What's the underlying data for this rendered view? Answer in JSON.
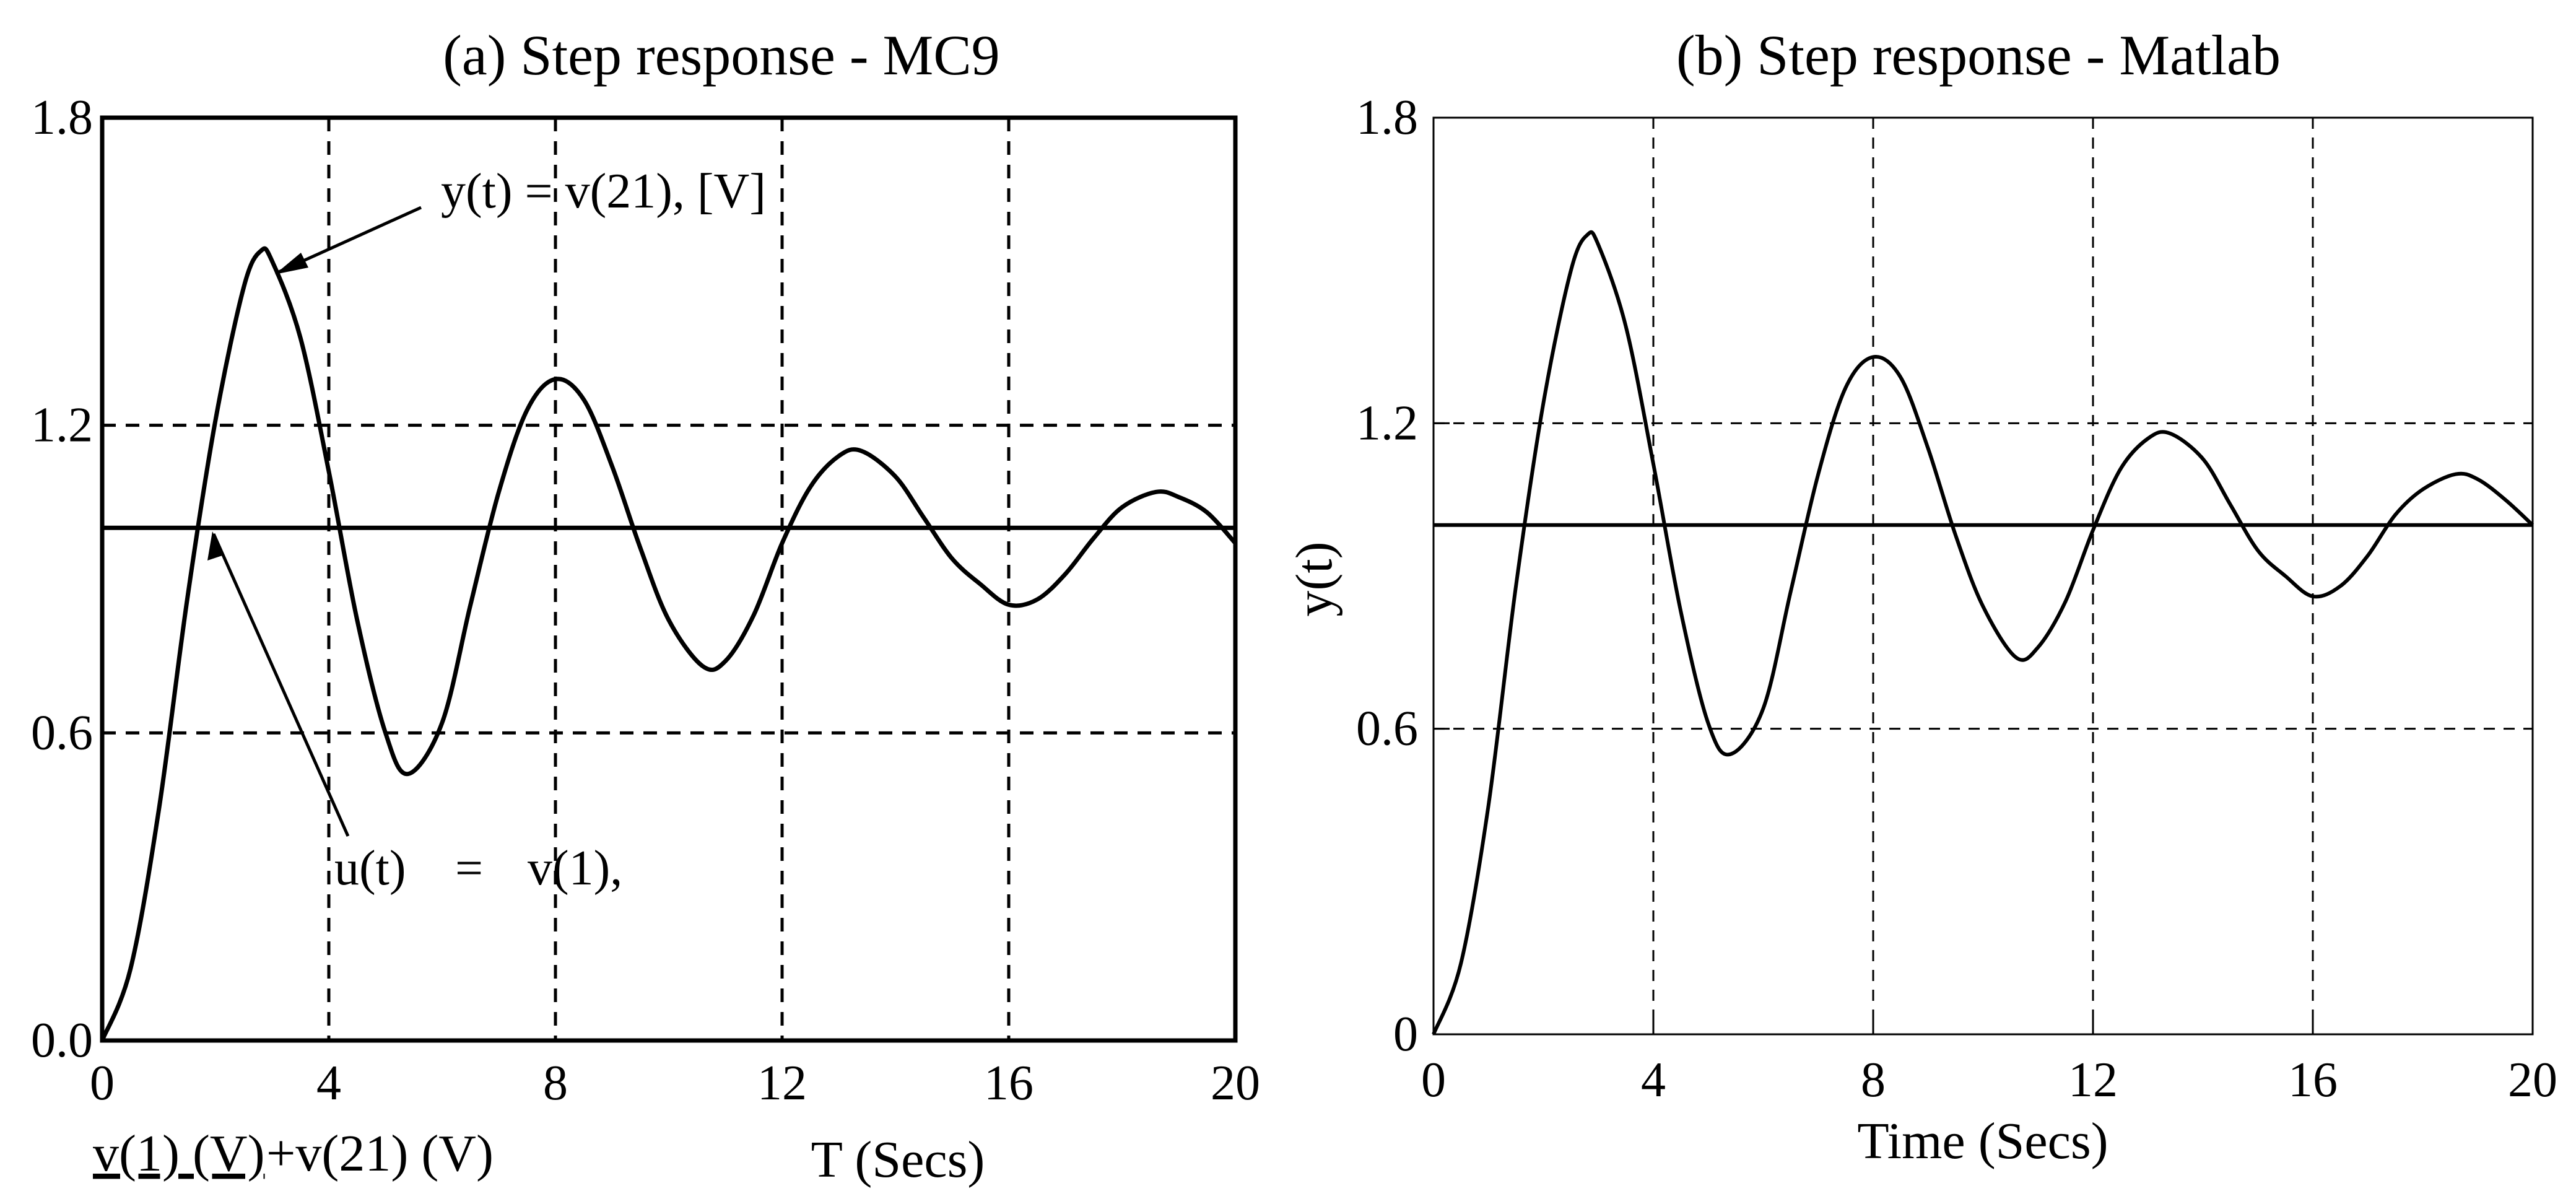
{
  "chart_data": [
    {
      "type": "line",
      "title": "(a) Step response - MC9",
      "xlabel": "T (Secs)",
      "legend_label_left": "v(1) (V)",
      "legend_label_right": "+v(21) (V)",
      "xlim": [
        0,
        20
      ],
      "ylim": [
        0,
        1.8
      ],
      "x_ticks": [
        "0",
        "4",
        "8",
        "12",
        "16",
        "20"
      ],
      "y_ticks": [
        "0.0",
        "0.6",
        "1.2",
        "1.8"
      ],
      "grid": "dashed",
      "annotations": {
        "output": "y(t) = v(21), [V]",
        "input_lhs": "u(t)",
        "input_eq": "=",
        "input_rhs": "v(1),"
      },
      "series": [
        {
          "name": "y(t) = v(21), [V]",
          "x": [
            0,
            0.5,
            1,
            1.5,
            2,
            2.5,
            2.8,
            3,
            3.5,
            4,
            4.5,
            5,
            5.4,
            6,
            6.5,
            7,
            7.5,
            8,
            8.5,
            9,
            9.5,
            10,
            10.6,
            11,
            11.5,
            12,
            12.5,
            13,
            13.4,
            14,
            14.5,
            15,
            15.5,
            16,
            16.5,
            17,
            17.5,
            18,
            18.6,
            19,
            19.5,
            20
          ],
          "y": [
            0,
            0.14,
            0.45,
            0.86,
            1.21,
            1.47,
            1.54,
            1.52,
            1.37,
            1.11,
            0.82,
            0.6,
            0.52,
            0.62,
            0.85,
            1.07,
            1.23,
            1.29,
            1.25,
            1.12,
            0.96,
            0.82,
            0.73,
            0.74,
            0.83,
            0.97,
            1.08,
            1.14,
            1.15,
            1.1,
            1.02,
            0.94,
            0.89,
            0.85,
            0.86,
            0.91,
            0.98,
            1.04,
            1.07,
            1.06,
            1.03,
            0.97
          ]
        },
        {
          "name": "u(t) = v(1)",
          "x": [
            0,
            20
          ],
          "y": [
            1,
            1
          ]
        }
      ]
    },
    {
      "type": "line",
      "title": "(b) Step response - Matlab",
      "xlabel": "Time (Secs)",
      "ylabel": "y(t)",
      "xlim": [
        0,
        20
      ],
      "ylim": [
        0,
        1.8
      ],
      "x_ticks": [
        "0",
        "4",
        "8",
        "12",
        "16",
        "20"
      ],
      "y_ticks": [
        "0",
        "0.6",
        "1.2",
        "1.8"
      ],
      "grid": "dashed",
      "series": [
        {
          "x": [
            0,
            0.5,
            1,
            1.5,
            2,
            2.5,
            2.8,
            3,
            3.5,
            4,
            4.5,
            5,
            5.4,
            6,
            6.5,
            7,
            7.5,
            8,
            8.5,
            9,
            9.5,
            10,
            10.6,
            11,
            11.5,
            12,
            12.5,
            13,
            13.4,
            14,
            14.5,
            15,
            15.5,
            16,
            16.5,
            17,
            17.5,
            18,
            18.6,
            19,
            19.5,
            20
          ],
          "y": [
            0,
            0.14,
            0.45,
            0.88,
            1.24,
            1.5,
            1.57,
            1.55,
            1.39,
            1.12,
            0.83,
            0.61,
            0.55,
            0.64,
            0.87,
            1.1,
            1.27,
            1.33,
            1.29,
            1.15,
            0.98,
            0.84,
            0.74,
            0.76,
            0.85,
            0.99,
            1.11,
            1.17,
            1.18,
            1.13,
            1.04,
            0.95,
            0.9,
            0.86,
            0.88,
            0.94,
            1.02,
            1.07,
            1.1,
            1.09,
            1.05,
            1.0
          ]
        },
        {
          "x": [
            0,
            20
          ],
          "y": [
            1,
            1
          ]
        }
      ]
    }
  ]
}
